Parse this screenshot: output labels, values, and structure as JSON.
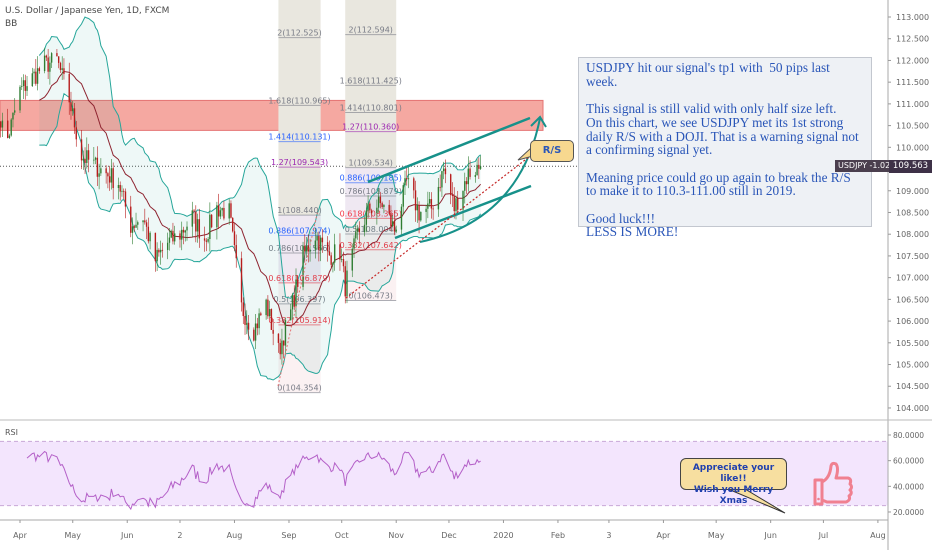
{
  "header": {
    "symbol_title": "U.S. Dollar / Japanese Yen, 1D, FXCM",
    "indicator": "BB"
  },
  "note": {
    "text": "USDJPY hit our signal's tp1 with  50 pips last week.\n\nThis signal is still valid with only half size left.\nOn this chart, we see USDJPY met its 1st strong  daily R/S with a DOJI. That is a warning signal not a confirming signal yet.\n\nMeaning price could go up again to break the R/S to make it to 110.3-111.00 still in 2019.\n\nGood luck!!!\nLESS IS MORE!"
  },
  "rs_callout": "R/S",
  "thanks_callout": {
    "line1": "Appreciate your like!!",
    "line2": "Wish you Merry Xmas"
  },
  "price_tag": {
    "label": "USDJPY -1.02%",
    "value": "109.563"
  },
  "rsi_label": "RSI",
  "colors": {
    "up": "#2e7d32",
    "down": "#b71c1c",
    "bb": "#26a69a",
    "basis": "#8e2430",
    "rsi": "#b460c8",
    "zone": "#f28b82",
    "channel": "#17918a",
    "thumb": "#f08090"
  },
  "icons": {
    "thumb": "thumbs-up-icon"
  },
  "chart_data": [
    {
      "type": "candlestick",
      "title": "U.S. Dollar / Japanese Yen, 1D, FXCM",
      "ylim": [
        103.7,
        113.3
      ],
      "yticks": [
        "113.000",
        "112.500",
        "112.000",
        "111.500",
        "111.000",
        "110.500",
        "110.000",
        "109.500",
        "109.000",
        "108.500",
        "108.000",
        "107.500",
        "107.000",
        "106.500",
        "106.000",
        "105.500",
        "105.000",
        "104.500",
        "104.000"
      ],
      "xticks": [
        "Apr",
        "May",
        "Jun",
        "2",
        "Aug",
        "Sep",
        "Oct",
        "Nov",
        "Dec",
        "2020",
        "Feb",
        "3",
        "Apr",
        "May",
        "Jun",
        "Jul",
        "Aug"
      ],
      "xtick_dates": [
        "2019-04-01",
        "2019-05-01",
        "2019-06-01",
        "2019-07-01",
        "2019-08-01",
        "2019-09-01",
        "2019-10-01",
        "2019-11-01",
        "2019-12-01",
        "2020-01-01",
        "2020-02-01",
        "2020-03-01",
        "2020-04-01",
        "2020-05-01",
        "2020-06-01",
        "2020-07-01",
        "2020-08-01"
      ],
      "approx_weekly_close": [
        [
          "2019-03-18",
          110.9
        ],
        [
          "2019-03-25",
          110.2
        ],
        [
          "2019-04-01",
          111.3
        ],
        [
          "2019-04-08",
          111.6
        ],
        [
          "2019-04-15",
          111.9
        ],
        [
          "2019-04-22",
          112.0
        ],
        [
          "2019-04-29",
          111.1
        ],
        [
          "2019-05-06",
          109.8
        ],
        [
          "2019-05-13",
          109.6
        ],
        [
          "2019-05-20",
          109.4
        ],
        [
          "2019-05-27",
          109.2
        ],
        [
          "2019-06-03",
          108.2
        ],
        [
          "2019-06-10",
          108.4
        ],
        [
          "2019-06-17",
          107.4
        ],
        [
          "2019-06-24",
          107.8
        ],
        [
          "2019-07-01",
          108.0
        ],
        [
          "2019-07-08",
          108.4
        ],
        [
          "2019-07-15",
          107.9
        ],
        [
          "2019-07-22",
          108.6
        ],
        [
          "2019-07-29",
          108.5
        ],
        [
          "2019-08-05",
          106.3
        ],
        [
          "2019-08-12",
          105.8
        ],
        [
          "2019-08-19",
          106.4
        ],
        [
          "2019-08-26",
          105.3
        ],
        [
          "2019-09-02",
          106.2
        ],
        [
          "2019-09-09",
          107.5
        ],
        [
          "2019-09-16",
          108.0
        ],
        [
          "2019-09-23",
          107.5
        ],
        [
          "2019-09-30",
          107.6
        ],
        [
          "2019-10-03",
          106.8
        ],
        [
          "2019-10-10",
          108.0
        ],
        [
          "2019-10-17",
          108.6
        ],
        [
          "2019-10-24",
          108.7
        ],
        [
          "2019-10-31",
          108.1
        ],
        [
          "2019-11-07",
          109.2
        ],
        [
          "2019-11-14",
          108.5
        ],
        [
          "2019-11-21",
          108.6
        ],
        [
          "2019-11-28",
          109.5
        ],
        [
          "2019-12-04",
          108.6
        ],
        [
          "2019-12-12",
          109.4
        ],
        [
          "2019-12-19",
          109.563
        ]
      ],
      "last_price": 109.563,
      "resistance_zone": [
        110.39,
        111.08
      ],
      "bollinger": {
        "period": 20,
        "stddev": 2
      },
      "fib_sets": [
        {
          "start_date": "2019-08-26",
          "end_date": "2019-09-19",
          "levels": [
            {
              "ratio": "2",
              "price": "112.525",
              "tone": "gray"
            },
            {
              "ratio": "1.618",
              "price": "110.965",
              "tone": "gray"
            },
            {
              "ratio": "1.414",
              "price": "110.131",
              "tone": "blue"
            },
            {
              "ratio": "1.27",
              "price": "109.543",
              "tone": "purple"
            },
            {
              "ratio": "1",
              "price": "108.440",
              "tone": "gray"
            },
            {
              "ratio": "0.886",
              "price": "107.974",
              "tone": "blue"
            },
            {
              "ratio": "0.786",
              "price": "107.566",
              "tone": "gray"
            },
            {
              "ratio": "0.618",
              "price": "106.879",
              "tone": "red"
            },
            {
              "ratio": "0.5",
              "price": "106.397",
              "tone": "gray"
            },
            {
              "ratio": "0.382",
              "price": "105.914",
              "tone": "red"
            },
            {
              "ratio": "0",
              "price": "104.354",
              "tone": "gray"
            }
          ]
        },
        {
          "start_date": "2019-10-03",
          "end_date": "2019-11-01",
          "levels": [
            {
              "ratio": "2",
              "price": "112.594",
              "tone": "gray"
            },
            {
              "ratio": "1.618",
              "price": "111.425",
              "tone": "gray"
            },
            {
              "ratio": "1.414",
              "price": "110.801",
              "tone": "gray"
            },
            {
              "ratio": "1.27",
              "price": "110.360",
              "tone": "purple"
            },
            {
              "ratio": "1",
              "price": "109.534",
              "tone": "gray"
            },
            {
              "ratio": "0.886",
              "price": "109.185",
              "tone": "blue"
            },
            {
              "ratio": "0.786",
              "price": "108.879",
              "tone": "gray"
            },
            {
              "ratio": "0.618",
              "price": "108.365",
              "tone": "red"
            },
            {
              "ratio": "0.5",
              "price": "108.004",
              "tone": "gray"
            },
            {
              "ratio": "0.382",
              "price": "107.642",
              "tone": "red"
            },
            {
              "ratio": "0",
              "price": "106.473",
              "tone": "gray"
            }
          ]
        }
      ]
    },
    {
      "type": "line",
      "title": "RSI",
      "ylim": [
        5,
        90
      ],
      "yticks": [
        "80.0000",
        "60.0000",
        "40.0000",
        "20.0000"
      ],
      "band": [
        25,
        75
      ],
      "period": 14
    }
  ]
}
